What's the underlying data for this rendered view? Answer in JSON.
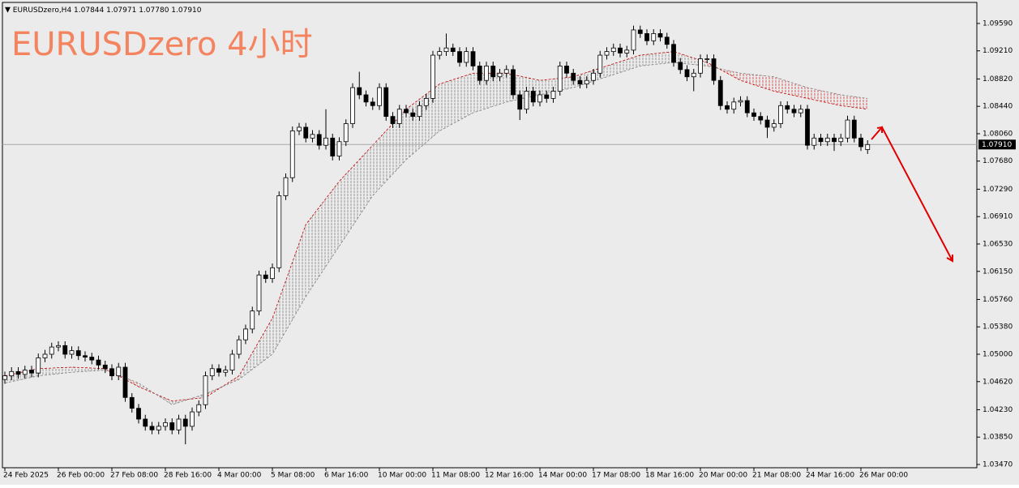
{
  "chart_data": {
    "type": "candlestick",
    "symbol_info": "EURUSDzero,H4  1.07844 1.07971 1.07780 1.07910",
    "title": "EURUSDzero 4小时",
    "categories": [
      "24 Feb 2025",
      "26 Feb 00:00",
      "27 Feb 08:00",
      "28 Feb 16:00",
      "4 Mar 00:00",
      "5 Mar 08:00",
      "6 Mar 16:00",
      "10 Mar 00:00",
      "11 Mar 08:00",
      "12 Mar 16:00",
      "14 Mar 00:00",
      "17 Mar 08:00",
      "18 Mar 16:00",
      "20 Mar 00:00",
      "21 Mar 08:00",
      "24 Mar 16:00",
      "26 Mar 00:00"
    ],
    "open": [
      1.0465,
      1.047,
      1.0476,
      1.0472,
      1.0478,
      1.0474,
      1.0495,
      1.05,
      1.051,
      1.0512,
      1.05,
      1.0505,
      1.0498,
      1.0496,
      1.0492,
      1.0485,
      1.048,
      1.047,
      1.0482,
      1.044,
      1.0425,
      1.041,
      1.04,
      1.0395,
      1.04,
      1.0405,
      1.0395,
      1.041,
      1.04,
      1.042,
      1.043,
      1.047,
      1.048,
      1.0475,
      1.0478,
      1.05,
      1.052,
      1.0535,
      1.056,
      1.061,
      1.0605,
      1.062,
      1.072,
      1.0745,
      1.081,
      1.0815,
      1.08,
      1.0805,
      1.079,
      1.08,
      1.0775,
      1.0795,
      1.082,
      1.087,
      1.086,
      1.085,
      1.0845,
      1.087,
      1.083,
      1.082,
      1.084,
      1.0835,
      1.083,
      1.0845,
      1.0855,
      1.0915,
      1.092,
      1.0925,
      1.092,
      1.0905,
      1.092,
      1.09,
      1.088,
      1.09,
      1.0885,
      1.089,
      1.0895,
      1.086,
      1.084,
      1.0865,
      1.085,
      1.086,
      1.0855,
      1.0865,
      1.09,
      1.089,
      1.088,
      1.0875,
      1.088,
      1.089,
      1.0915,
      1.092,
      1.0925,
      1.0918,
      1.0922,
      1.095,
      1.0945,
      1.0935,
      1.0945,
      1.094,
      1.093,
      1.0905,
      1.0895,
      1.0885,
      1.089,
      1.091,
      1.091,
      1.088,
      1.0845,
      1.084,
      1.085,
      1.0852,
      1.0835,
      1.083,
      1.0825,
      1.0815,
      1.082,
      1.0845,
      1.084,
      1.0835,
      1.084,
      1.079,
      1.08,
      1.0795,
      1.08,
      1.0795,
      1.08,
      1.0825,
      1.08,
      1.0784
    ],
    "high": [
      1.0476,
      1.0482,
      1.0482,
      1.0484,
      1.0484,
      1.0501,
      1.0506,
      1.0516,
      1.0518,
      1.0518,
      1.0511,
      1.0511,
      1.0504,
      1.0502,
      1.0498,
      1.0491,
      1.0486,
      1.0488,
      1.0488,
      1.0446,
      1.0431,
      1.0416,
      1.0406,
      1.0406,
      1.0411,
      1.0411,
      1.0416,
      1.0416,
      1.0426,
      1.0436,
      1.0476,
      1.0486,
      1.0486,
      1.0484,
      1.0506,
      1.0526,
      1.0541,
      1.0566,
      1.0616,
      1.0616,
      1.0626,
      1.0726,
      1.0751,
      1.0816,
      1.0821,
      1.0821,
      1.0811,
      1.0811,
      1.084,
      1.0806,
      1.0801,
      1.0826,
      1.0876,
      1.0892,
      1.0866,
      1.0856,
      1.0876,
      1.0876,
      1.0836,
      1.0846,
      1.0846,
      1.0841,
      1.0851,
      1.0861,
      1.0921,
      1.0926,
      1.0945,
      1.0931,
      1.0926,
      1.0926,
      1.0926,
      1.0906,
      1.0906,
      1.0906,
      1.0896,
      1.0901,
      1.0901,
      1.0866,
      1.0871,
      1.0871,
      1.0866,
      1.0866,
      1.0871,
      1.0906,
      1.0906,
      1.0896,
      1.0886,
      1.0886,
      1.0896,
      1.0921,
      1.0926,
      1.0931,
      1.0931,
      1.0928,
      1.0956,
      1.0956,
      1.0951,
      1.0951,
      1.0951,
      1.0946,
      1.0936,
      1.0911,
      1.0901,
      1.0896,
      1.0916,
      1.0916,
      1.0916,
      1.0886,
      1.0851,
      1.0856,
      1.0858,
      1.0858,
      1.0841,
      1.0836,
      1.0831,
      1.0826,
      1.0851,
      1.0851,
      1.0846,
      1.0846,
      1.0846,
      1.0806,
      1.0806,
      1.0806,
      1.0806,
      1.0806,
      1.0831,
      1.0831,
      1.0806,
      1.0797
    ],
    "low": [
      1.0459,
      1.0464,
      1.0466,
      1.0466,
      1.0468,
      1.0468,
      1.0489,
      1.0494,
      1.0504,
      1.0494,
      1.0494,
      1.0492,
      1.049,
      1.0486,
      1.0479,
      1.0474,
      1.0464,
      1.0464,
      1.0434,
      1.0419,
      1.0404,
      1.0394,
      1.0389,
      1.0389,
      1.0394,
      1.0389,
      1.0389,
      1.0375,
      1.0394,
      1.0414,
      1.0424,
      1.0464,
      1.0469,
      1.0469,
      1.0472,
      1.0494,
      1.0514,
      1.0529,
      1.0554,
      1.0599,
      1.0599,
      1.0614,
      1.0714,
      1.0739,
      1.0804,
      1.0794,
      1.0794,
      1.0784,
      1.0784,
      1.0769,
      1.0769,
      1.0789,
      1.0814,
      1.0854,
      1.0844,
      1.0839,
      1.0839,
      1.0824,
      1.0814,
      1.0814,
      1.0829,
      1.0824,
      1.0824,
      1.0839,
      1.0849,
      1.0909,
      1.0914,
      1.0914,
      1.0899,
      1.0899,
      1.0894,
      1.0874,
      1.0874,
      1.0879,
      1.0879,
      1.0884,
      1.0854,
      1.0825,
      1.0834,
      1.0844,
      1.0844,
      1.0849,
      1.0849,
      1.0859,
      1.0884,
      1.0874,
      1.0869,
      1.0869,
      1.0874,
      1.0884,
      1.0909,
      1.0914,
      1.0912,
      1.0912,
      1.0916,
      1.0939,
      1.0929,
      1.0929,
      1.0934,
      1.0924,
      1.0899,
      1.0889,
      1.0879,
      1.0865,
      1.0884,
      1.0904,
      1.0874,
      1.0839,
      1.0834,
      1.0834,
      1.0844,
      1.0829,
      1.0824,
      1.0819,
      1.08,
      1.0809,
      1.0814,
      1.0834,
      1.0829,
      1.0829,
      1.0784,
      1.0784,
      1.0789,
      1.0789,
      1.0782,
      1.0789,
      1.0794,
      1.0794,
      1.0782,
      1.0778
    ],
    "close": [
      1.047,
      1.0476,
      1.0472,
      1.0478,
      1.0474,
      1.0495,
      1.05,
      1.051,
      1.0512,
      1.05,
      1.0505,
      1.0498,
      1.0496,
      1.0492,
      1.0485,
      1.048,
      1.047,
      1.0482,
      1.044,
      1.0425,
      1.041,
      1.04,
      1.0395,
      1.04,
      1.0405,
      1.0395,
      1.041,
      1.04,
      1.042,
      1.043,
      1.047,
      1.048,
      1.0475,
      1.0478,
      1.05,
      1.052,
      1.0535,
      1.056,
      1.061,
      1.0605,
      1.062,
      1.072,
      1.0745,
      1.081,
      1.0815,
      1.08,
      1.0805,
      1.079,
      1.08,
      1.0775,
      1.0795,
      1.082,
      1.087,
      1.086,
      1.085,
      1.0845,
      1.087,
      1.083,
      1.082,
      1.084,
      1.0835,
      1.083,
      1.0845,
      1.0855,
      1.0915,
      1.092,
      1.0925,
      1.092,
      1.0905,
      1.092,
      1.09,
      1.088,
      1.09,
      1.0885,
      1.089,
      1.0895,
      1.086,
      1.084,
      1.0865,
      1.085,
      1.086,
      1.0855,
      1.0865,
      1.09,
      1.089,
      1.088,
      1.0875,
      1.088,
      1.089,
      1.0915,
      1.092,
      1.0925,
      1.0918,
      1.0922,
      1.095,
      1.0945,
      1.0935,
      1.0945,
      1.094,
      1.093,
      1.0905,
      1.0895,
      1.0885,
      1.089,
      1.091,
      1.091,
      1.088,
      1.0845,
      1.084,
      1.085,
      1.0852,
      1.0835,
      1.083,
      1.0825,
      1.0815,
      1.082,
      1.0845,
      1.084,
      1.0835,
      1.084,
      1.079,
      1.08,
      1.0795,
      1.08,
      1.0795,
      1.08,
      1.0825,
      1.08,
      1.0788,
      1.0791
    ],
    "band_x": [
      0,
      5,
      10,
      15,
      20,
      25,
      30,
      35,
      40,
      45,
      50,
      55,
      60,
      65,
      70,
      75,
      80,
      85,
      90,
      95,
      100,
      105,
      110,
      115,
      120,
      125,
      129
    ],
    "band_lines": [
      {
        "color": "#c00000",
        "values": [
          1.047,
          1.048,
          1.0482,
          1.048,
          1.0455,
          1.0435,
          1.044,
          1.047,
          1.055,
          1.068,
          1.074,
          1.079,
          1.084,
          1.0875,
          1.089,
          1.089,
          1.088,
          1.0885,
          1.09,
          1.0915,
          1.092,
          1.0905,
          1.088,
          1.0865,
          1.0855,
          1.0845,
          1.084
        ]
      },
      {
        "color": "#808080",
        "values": [
          1.046,
          1.047,
          1.0475,
          1.0478,
          1.046,
          1.043,
          1.0445,
          1.0465,
          1.05,
          1.058,
          1.065,
          1.072,
          1.077,
          1.081,
          1.0835,
          1.085,
          1.086,
          1.087,
          1.0885,
          1.09,
          1.0905,
          1.09,
          1.089,
          1.0885,
          1.087,
          1.086,
          1.0855
        ]
      }
    ],
    "last_price": {
      "value": 1.0791,
      "label": "1.07910"
    },
    "ylim": [
      1.03425,
      1.09882
    ],
    "yticks": [
      {
        "value": 1.0959,
        "label": "1.09590"
      },
      {
        "value": 1.0921,
        "label": "1.09210"
      },
      {
        "value": 1.0882,
        "label": "1.08820"
      },
      {
        "value": 1.0844,
        "label": "1.08440"
      },
      {
        "value": 1.0806,
        "label": "1.08060"
      },
      {
        "value": 1.0768,
        "label": "1.07680"
      },
      {
        "value": 1.0729,
        "label": "1.07290"
      },
      {
        "value": 1.0691,
        "label": "1.06910"
      },
      {
        "value": 1.0653,
        "label": "1.06530"
      },
      {
        "value": 1.0615,
        "label": "1.06150"
      },
      {
        "value": 1.0576,
        "label": "1.05760"
      },
      {
        "value": 1.0538,
        "label": "1.05380"
      },
      {
        "value": 1.05,
        "label": "1.05000"
      },
      {
        "value": 1.0462,
        "label": "1.04620"
      },
      {
        "value": 1.0423,
        "label": "1.04230"
      },
      {
        "value": 1.0385,
        "label": "1.03850"
      },
      {
        "value": 1.0347,
        "label": "1.03470"
      }
    ],
    "up_color": "#ffffff",
    "down_color": "#000000"
  }
}
